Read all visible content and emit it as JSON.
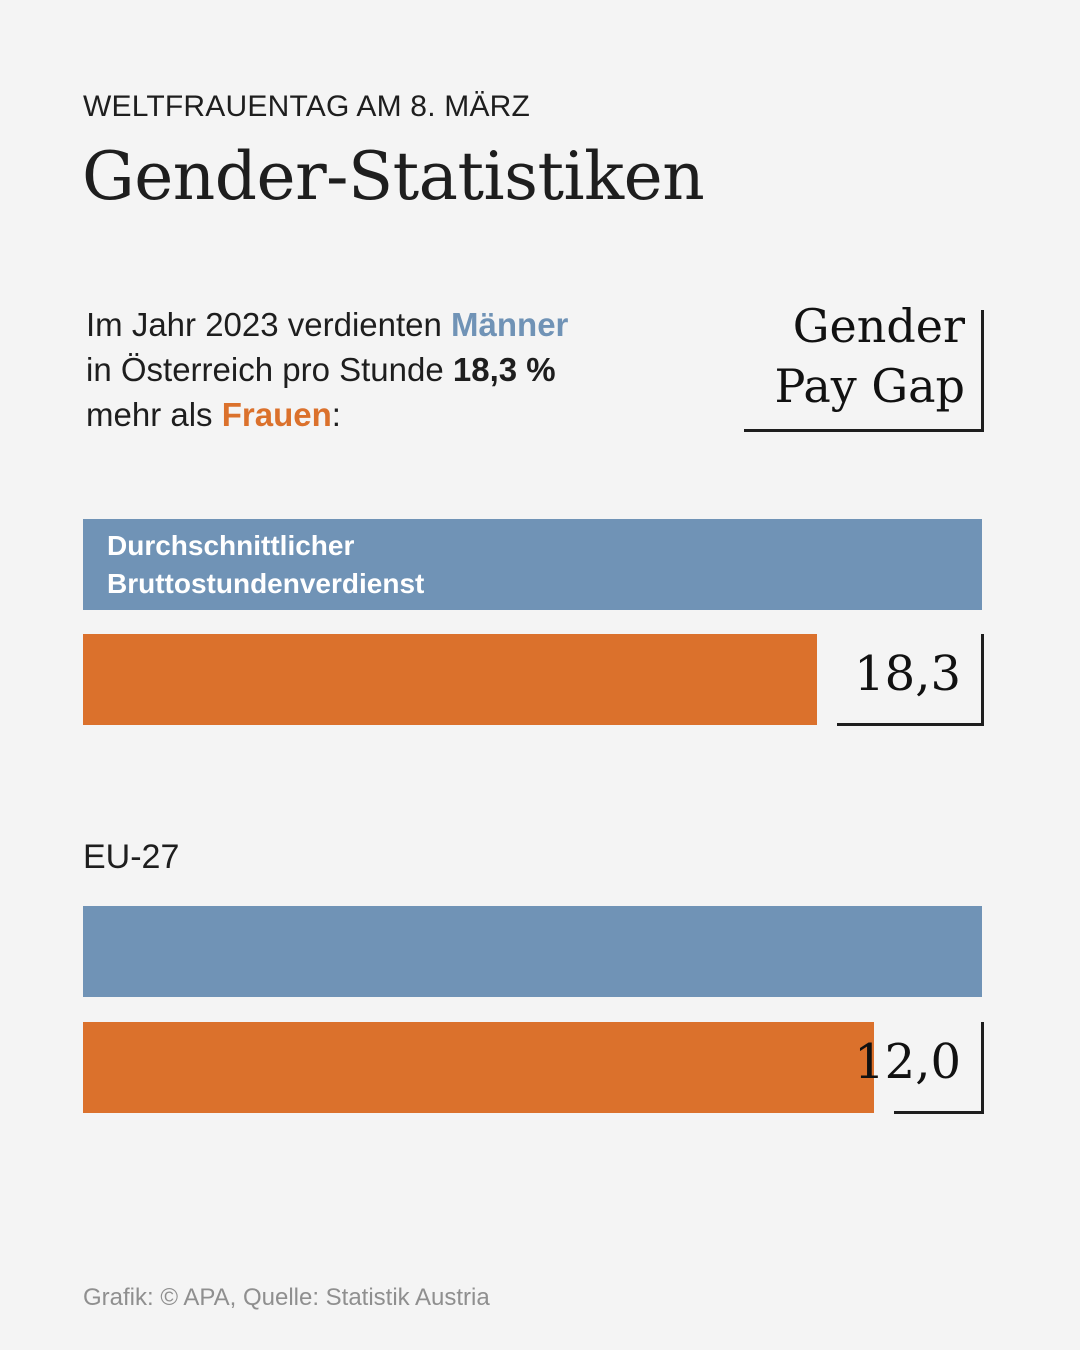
{
  "header": {
    "kicker": "WELTFRAUENTAG AM 8. MÄRZ",
    "title": "Gender-Statistiken"
  },
  "intro": {
    "part1": "Im Jahr 2023 verdienten ",
    "men": "Männer",
    "part2": " in Österreich pro Stunde ",
    "percent": "18,3 %",
    "part3": " mehr als ",
    "women": "Frauen",
    "part4": ":"
  },
  "badge": {
    "line1": "Gender",
    "line2": "Pay Gap"
  },
  "colors": {
    "men": "#7093b6",
    "women": "#db712c",
    "background": "#f4f4f4",
    "text": "#1e1e1e",
    "source": "#8f8f8f"
  },
  "chart_data": {
    "type": "bar",
    "title": "Gender Pay Gap",
    "orientation": "horizontal",
    "unit": "%",
    "bar_label_line1": "Durchschnittlicher",
    "bar_label_line2": "Bruttostundenverdienst",
    "groups": [
      {
        "name": "Österreich",
        "label": "",
        "men_index": 100,
        "women_index": 81.7,
        "gap": 18.3,
        "gap_label": "18,3"
      },
      {
        "name": "EU-27",
        "label": "EU-27",
        "men_index": 100,
        "women_index": 88.0,
        "gap": 12.0,
        "gap_label": "12,0"
      }
    ],
    "series": [
      {
        "name": "Männer",
        "values": [
          100,
          100
        ]
      },
      {
        "name": "Frauen",
        "values": [
          81.7,
          88.0
        ]
      }
    ],
    "xlim": [
      0,
      100
    ]
  },
  "footer": {
    "source": "Grafik: © APA, Quelle: Statistik Austria"
  }
}
